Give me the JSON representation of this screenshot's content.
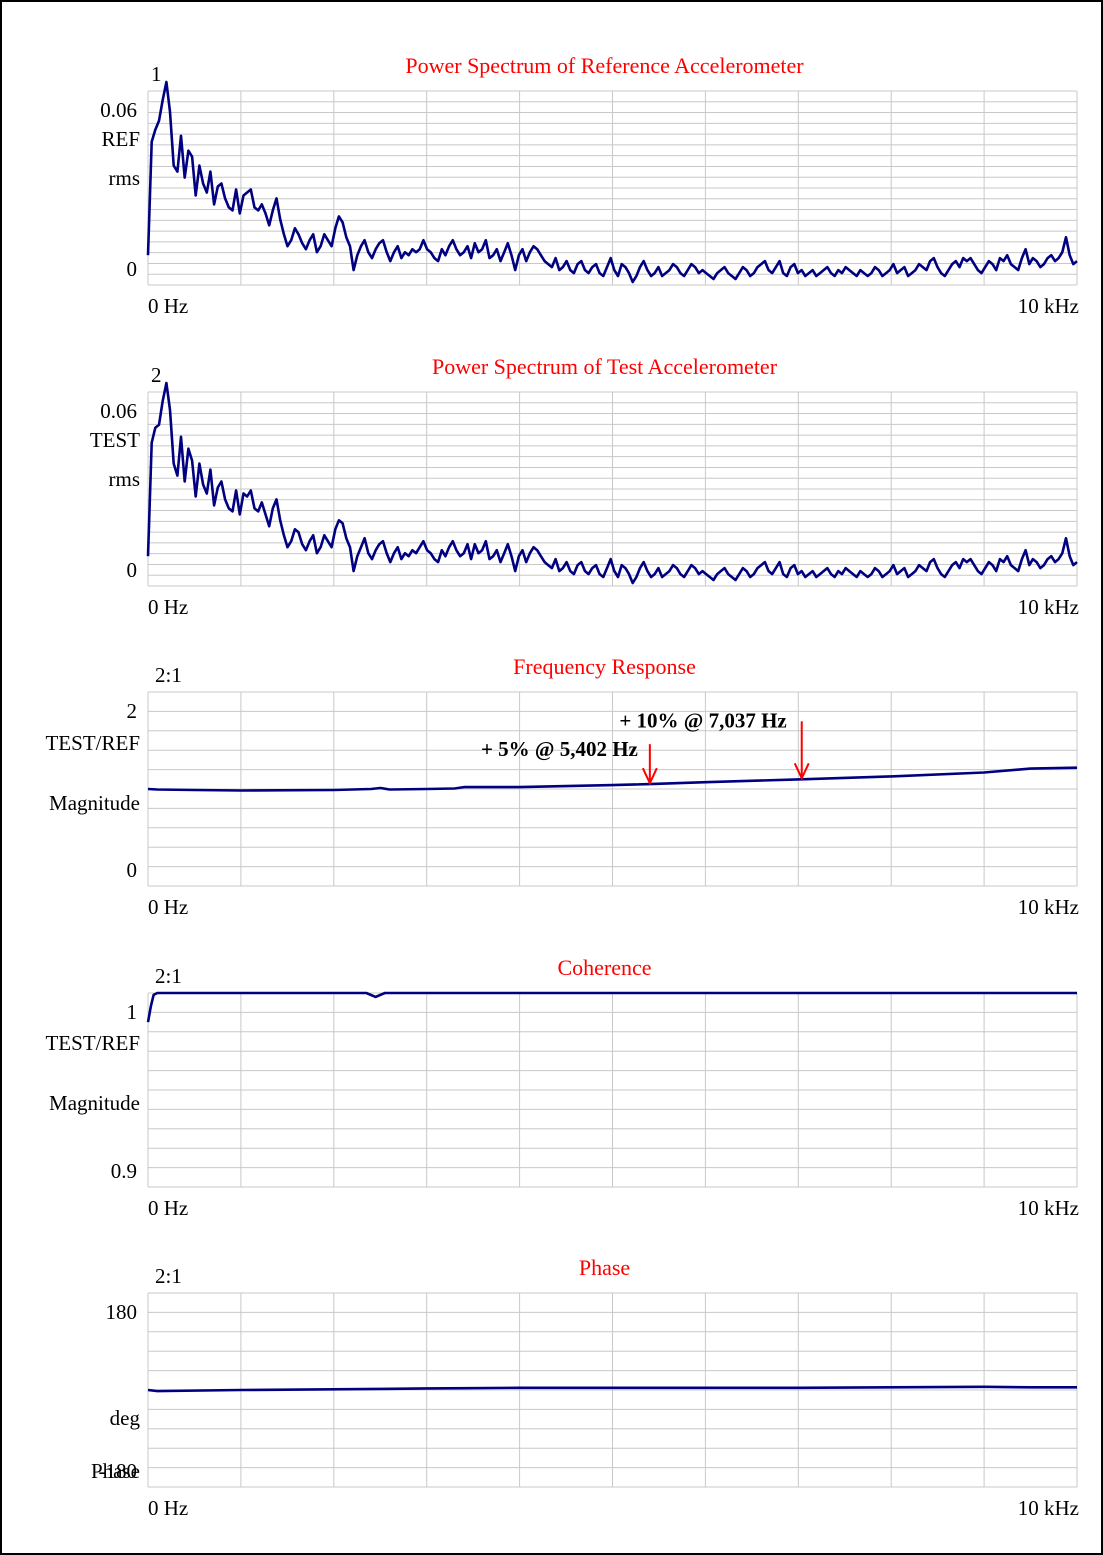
{
  "colors": {
    "trace": "#000080",
    "title": "#ff0000",
    "grid": "#c8c8c8",
    "annotation_arrow": "#ff0000"
  },
  "chart_data": [
    {
      "type": "line",
      "title": "Power Spectrum of Reference Accelerometer",
      "channel_label": "1",
      "ylabel_lines": [
        "REF",
        "rms"
      ],
      "ytick_labels": [
        "0.06",
        "0"
      ],
      "xtick_labels": [
        "0  Hz",
        "10 kHz"
      ],
      "xlim": [
        0,
        10000
      ],
      "ylim": [
        0,
        0.065
      ],
      "grid": "on",
      "grid_divisions": {
        "x": 10,
        "y": 18
      },
      "series": [
        {
          "values": [
            0.01,
            0.048,
            0.052,
            0.055,
            0.062,
            0.068,
            0.058,
            0.04,
            0.038,
            0.05,
            0.036,
            0.045,
            0.043,
            0.03,
            0.04,
            0.034,
            0.031,
            0.038,
            0.027,
            0.033,
            0.034,
            0.029,
            0.026,
            0.025,
            0.032,
            0.024,
            0.03,
            0.031,
            0.032,
            0.026,
            0.025,
            0.027,
            0.024,
            0.02,
            0.025,
            0.029,
            0.022,
            0.017,
            0.013,
            0.015,
            0.019,
            0.017,
            0.014,
            0.012,
            0.015,
            0.017,
            0.011,
            0.013,
            0.017,
            0.015,
            0.013,
            0.019,
            0.023,
            0.021,
            0.016,
            0.013,
            0.005,
            0.01,
            0.013,
            0.015,
            0.011,
            0.009,
            0.012,
            0.014,
            0.015,
            0.011,
            0.008,
            0.011,
            0.013,
            0.009,
            0.011,
            0.01,
            0.012,
            0.011,
            0.012,
            0.015,
            0.012,
            0.011,
            0.009,
            0.008,
            0.012,
            0.01,
            0.013,
            0.015,
            0.012,
            0.01,
            0.011,
            0.013,
            0.009,
            0.014,
            0.011,
            0.012,
            0.015,
            0.009,
            0.01,
            0.012,
            0.008,
            0.011,
            0.014,
            0.01,
            0.005,
            0.01,
            0.012,
            0.008,
            0.011,
            0.013,
            0.012,
            0.01,
            0.008,
            0.007,
            0.006,
            0.009,
            0.005,
            0.006,
            0.008,
            0.005,
            0.004,
            0.007,
            0.008,
            0.005,
            0.004,
            0.006,
            0.007,
            0.004,
            0.003,
            0.006,
            0.009,
            0.005,
            0.003,
            0.007,
            0.006,
            0.004,
            0.001,
            0.003,
            0.006,
            0.008,
            0.005,
            0.003,
            0.004,
            0.006,
            0.003,
            0.004,
            0.005,
            0.007,
            0.006,
            0.004,
            0.003,
            0.005,
            0.007,
            0.006,
            0.004,
            0.005,
            0.004,
            0.003,
            0.002,
            0.004,
            0.005,
            0.006,
            0.004,
            0.003,
            0.002,
            0.004,
            0.006,
            0.005,
            0.003,
            0.004,
            0.006,
            0.007,
            0.008,
            0.005,
            0.004,
            0.006,
            0.008,
            0.004,
            0.003,
            0.006,
            0.007,
            0.004,
            0.005,
            0.003,
            0.004,
            0.005,
            0.003,
            0.004,
            0.005,
            0.006,
            0.004,
            0.003,
            0.005,
            0.004,
            0.006,
            0.005,
            0.004,
            0.003,
            0.005,
            0.004,
            0.003,
            0.004,
            0.006,
            0.005,
            0.003,
            0.004,
            0.005,
            0.007,
            0.004,
            0.005,
            0.006,
            0.003,
            0.004,
            0.005,
            0.007,
            0.006,
            0.005,
            0.008,
            0.009,
            0.006,
            0.004,
            0.003,
            0.005,
            0.007,
            0.008,
            0.006,
            0.009,
            0.008,
            0.009,
            0.007,
            0.005,
            0.004,
            0.006,
            0.008,
            0.007,
            0.005,
            0.009,
            0.008,
            0.01,
            0.007,
            0.006,
            0.005,
            0.009,
            0.012,
            0.007,
            0.009,
            0.008,
            0.006,
            0.007,
            0.009,
            0.01,
            0.008,
            0.009,
            0.011,
            0.016,
            0.01,
            0.007,
            0.008
          ]
        }
      ]
    },
    {
      "type": "line",
      "title": "Power Spectrum of Test Accelerometer",
      "channel_label": "2",
      "ylabel_lines": [
        "TEST",
        "rms"
      ],
      "ytick_labels": [
        "0.06",
        "0"
      ],
      "xtick_labels": [
        "0  Hz",
        "10 kHz"
      ],
      "xlim": [
        0,
        10000
      ],
      "ylim": [
        0,
        0.065
      ],
      "grid": "on",
      "grid_divisions": {
        "x": 10,
        "y": 18
      },
      "series": [
        {
          "values": [
            0.01,
            0.048,
            0.053,
            0.054,
            0.062,
            0.068,
            0.059,
            0.041,
            0.037,
            0.05,
            0.035,
            0.046,
            0.042,
            0.03,
            0.041,
            0.034,
            0.031,
            0.039,
            0.027,
            0.033,
            0.035,
            0.029,
            0.026,
            0.025,
            0.032,
            0.024,
            0.031,
            0.03,
            0.032,
            0.026,
            0.025,
            0.028,
            0.024,
            0.02,
            0.026,
            0.029,
            0.022,
            0.017,
            0.013,
            0.015,
            0.019,
            0.018,
            0.014,
            0.012,
            0.015,
            0.017,
            0.011,
            0.013,
            0.017,
            0.015,
            0.013,
            0.019,
            0.022,
            0.021,
            0.016,
            0.013,
            0.005,
            0.01,
            0.013,
            0.016,
            0.011,
            0.009,
            0.012,
            0.014,
            0.015,
            0.011,
            0.008,
            0.011,
            0.013,
            0.009,
            0.011,
            0.01,
            0.012,
            0.011,
            0.013,
            0.015,
            0.012,
            0.011,
            0.009,
            0.008,
            0.012,
            0.01,
            0.013,
            0.015,
            0.012,
            0.01,
            0.011,
            0.014,
            0.009,
            0.014,
            0.011,
            0.012,
            0.015,
            0.009,
            0.01,
            0.012,
            0.008,
            0.011,
            0.014,
            0.01,
            0.005,
            0.01,
            0.012,
            0.008,
            0.011,
            0.013,
            0.012,
            0.01,
            0.008,
            0.007,
            0.006,
            0.009,
            0.005,
            0.006,
            0.008,
            0.005,
            0.004,
            0.007,
            0.008,
            0.005,
            0.004,
            0.006,
            0.007,
            0.004,
            0.003,
            0.006,
            0.009,
            0.005,
            0.003,
            0.007,
            0.006,
            0.004,
            0.001,
            0.003,
            0.006,
            0.008,
            0.005,
            0.003,
            0.004,
            0.006,
            0.003,
            0.004,
            0.005,
            0.007,
            0.006,
            0.004,
            0.003,
            0.005,
            0.007,
            0.006,
            0.004,
            0.005,
            0.004,
            0.003,
            0.002,
            0.004,
            0.005,
            0.006,
            0.004,
            0.003,
            0.002,
            0.004,
            0.006,
            0.005,
            0.003,
            0.004,
            0.006,
            0.007,
            0.008,
            0.005,
            0.004,
            0.006,
            0.008,
            0.004,
            0.003,
            0.006,
            0.007,
            0.004,
            0.005,
            0.003,
            0.004,
            0.005,
            0.003,
            0.004,
            0.005,
            0.006,
            0.004,
            0.003,
            0.005,
            0.004,
            0.006,
            0.005,
            0.004,
            0.003,
            0.005,
            0.004,
            0.003,
            0.004,
            0.006,
            0.005,
            0.003,
            0.004,
            0.005,
            0.007,
            0.004,
            0.005,
            0.006,
            0.003,
            0.004,
            0.005,
            0.007,
            0.006,
            0.005,
            0.008,
            0.009,
            0.006,
            0.004,
            0.003,
            0.005,
            0.007,
            0.008,
            0.006,
            0.009,
            0.008,
            0.009,
            0.007,
            0.005,
            0.004,
            0.006,
            0.008,
            0.007,
            0.005,
            0.009,
            0.008,
            0.01,
            0.007,
            0.006,
            0.005,
            0.009,
            0.012,
            0.007,
            0.009,
            0.008,
            0.006,
            0.007,
            0.009,
            0.01,
            0.008,
            0.009,
            0.011,
            0.016,
            0.01,
            0.007,
            0.008
          ]
        }
      ]
    },
    {
      "type": "line",
      "title": "Frequency Response",
      "channel_label": "2:1",
      "ylabel_lines": [
        "TEST/REF",
        "Magnitude"
      ],
      "ytick_labels": [
        "2",
        "0"
      ],
      "xtick_labels": [
        "0  Hz",
        "10 kHz"
      ],
      "xlim": [
        0,
        10000
      ],
      "ylim": [
        0,
        2
      ],
      "grid": "on",
      "grid_divisions": {
        "x": 10,
        "y": 10
      },
      "series": [
        {
          "x": [
            0,
            100,
            500,
            1000,
            2000,
            2400,
            2500,
            2600,
            3000,
            3300,
            3400,
            4000,
            5000,
            5402,
            6000,
            7037,
            8000,
            9000,
            9500,
            10000
          ],
          "y": [
            1.0,
            0.995,
            0.99,
            0.985,
            0.99,
            1.0,
            1.01,
            0.995,
            1.0,
            1.005,
            1.02,
            1.02,
            1.04,
            1.05,
            1.07,
            1.1,
            1.13,
            1.17,
            1.21,
            1.22
          ]
        }
      ],
      "annotations": [
        {
          "text": "+ 5% @ 5,402 Hz",
          "x": 5402,
          "y": 1.05
        },
        {
          "text": "+ 10% @ 7,037 Hz",
          "x": 7037,
          "y": 1.1
        }
      ]
    },
    {
      "type": "line",
      "title": "Coherence",
      "channel_label": "2:1",
      "ylabel_lines": [
        "TEST/REF",
        "Magnitude"
      ],
      "ytick_labels": [
        "1",
        "0.9"
      ],
      "xtick_labels": [
        "0  Hz",
        "10 kHz"
      ],
      "xlim": [
        0,
        10000
      ],
      "ylim": [
        0.9,
        1.0
      ],
      "grid": "on",
      "grid_divisions": {
        "x": 10,
        "y": 10
      },
      "series": [
        {
          "x": [
            0,
            30,
            60,
            100,
            2350,
            2450,
            2550,
            10000
          ],
          "y": [
            0.985,
            0.993,
            0.999,
            1.0,
            1.0,
            0.998,
            1.0,
            1.0
          ]
        }
      ]
    },
    {
      "type": "line",
      "title": "Phase",
      "channel_label": "2:1",
      "ylabel_lines": [
        "deg",
        "Phase"
      ],
      "ytick_labels": [
        "180",
        "-180"
      ],
      "xtick_labels": [
        "0  Hz",
        "10 kHz"
      ],
      "xlim": [
        0,
        10000
      ],
      "ylim": [
        -180,
        180
      ],
      "grid": "on",
      "grid_divisions": {
        "x": 10,
        "y": 10
      },
      "series": [
        {
          "x": [
            0,
            100,
            1000,
            2500,
            3000,
            4000,
            5000,
            6000,
            7000,
            8000,
            9000,
            9500,
            10000
          ],
          "y": [
            0,
            -2,
            0,
            2,
            3,
            4,
            4,
            4,
            4,
            5,
            6,
            5,
            5
          ]
        }
      ]
    }
  ]
}
